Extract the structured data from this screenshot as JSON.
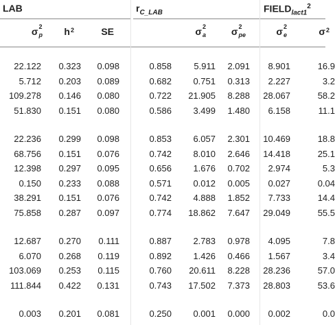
{
  "header": {
    "lab_title": "LAB",
    "rc_title_base": "r",
    "rc_title_sub": "C_LAB",
    "field_title_base": "FIELD",
    "field_title_sub": "lact1",
    "field_title_sup": "2"
  },
  "columns": [
    {
      "base": "σ",
      "sup": "2",
      "sub": "p"
    },
    {
      "base": "h",
      "sup": "2",
      "sub": ""
    },
    {
      "base": "SE",
      "sup": "",
      "sub": ""
    },
    {
      "base": "",
      "sup": "",
      "sub": ""
    },
    {
      "base": "σ",
      "sup": "2",
      "sub": "a"
    },
    {
      "base": "σ",
      "sup": "2",
      "sub": "pe"
    },
    {
      "base": "σ",
      "sup": "2",
      "sub": "e"
    },
    {
      "base": "σ",
      "sup": "2",
      "sub": ""
    }
  ],
  "groups": [
    {
      "rows": [
        [
          "22.122",
          "0.323",
          "0.098",
          "0.858",
          "5.911",
          "2.091",
          "8.901",
          "16.9"
        ],
        [
          "5.712",
          "0.203",
          "0.089",
          "0.682",
          "0.751",
          "0.313",
          "2.227",
          "3.2"
        ],
        [
          "109.278",
          "0.146",
          "0.080",
          "0.722",
          "21.905",
          "8.288",
          "28.067",
          "58.2"
        ],
        [
          "51.830",
          "0.151",
          "0.080",
          "0.586",
          "3.499",
          "1.480",
          "6.158",
          "11.1"
        ]
      ]
    },
    {
      "rows": [
        [
          "22.236",
          "0.299",
          "0.098",
          "0.853",
          "6.057",
          "2.301",
          "10.469",
          "18.8"
        ],
        [
          "68.756",
          "0.151",
          "0.076",
          "0.742",
          "8.010",
          "2.646",
          "14.418",
          "25.1"
        ],
        [
          "12.398",
          "0.297",
          "0.095",
          "0.656",
          "1.676",
          "0.702",
          "2.974",
          "5.3"
        ],
        [
          "0.150",
          "0.233",
          "0.088",
          "0.571",
          "0.012",
          "0.005",
          "0.027",
          "0.04"
        ],
        [
          "38.291",
          "0.151",
          "0.076",
          "0.742",
          "4.888",
          "1.852",
          "7.733",
          "14.4"
        ],
        [
          "75.858",
          "0.287",
          "0.097",
          "0.774",
          "18.862",
          "7.647",
          "29.049",
          "55.5"
        ]
      ]
    },
    {
      "rows": [
        [
          "12.687",
          "0.270",
          "0.111",
          "0.887",
          "2.783",
          "0.978",
          "4.095",
          "7.8"
        ],
        [
          "6.070",
          "0.268",
          "0.119",
          "0.892",
          "1.426",
          "0.466",
          "1.567",
          "3.4"
        ],
        [
          "103.069",
          "0.253",
          "0.115",
          "0.760",
          "20.611",
          "8.228",
          "28.236",
          "57.0"
        ],
        [
          "111.844",
          "0.422",
          "0.131",
          "0.743",
          "17.502",
          "7.373",
          "28.803",
          "53.6"
        ]
      ]
    },
    {
      "rows": [
        [
          "0.003",
          "0.201",
          "0.081",
          "0.250",
          "0.001",
          "0.000",
          "0.002",
          "0.0"
        ]
      ]
    }
  ]
}
